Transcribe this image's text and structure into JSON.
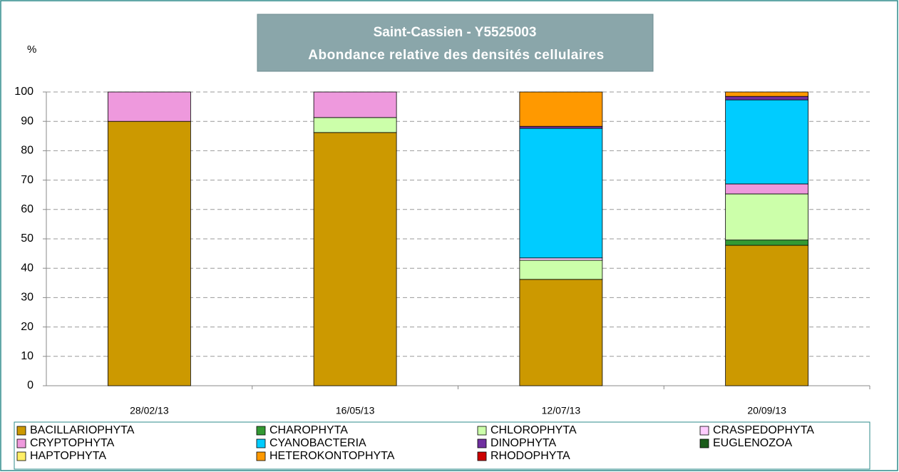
{
  "chart_data": {
    "type": "stacked_bar",
    "title": "Saint-Cassien - Y5525003",
    "subtitle": "Abondance relative des densités cellulaires",
    "y_label": "%",
    "categories": [
      "28/02/13",
      "16/05/13",
      "12/07/13",
      "20/09/13"
    ],
    "series": [
      {
        "name": "BACILLARIOPHYTA",
        "color": "#cc9900",
        "values": [
          90,
          86.2,
          36.2,
          47.8
        ]
      },
      {
        "name": "CHAROPHYTA",
        "color": "#339933",
        "values": [
          0,
          0,
          0,
          1.8
        ]
      },
      {
        "name": "CHLOROPHYTA",
        "color": "#ccffaa",
        "values": [
          0,
          5.1,
          6.5,
          15.7
        ]
      },
      {
        "name": "CRASPEDOPHYTA",
        "color": "#ffccff",
        "values": [
          0,
          0,
          0.8,
          0
        ]
      },
      {
        "name": "CRYPTOPHYTA",
        "color": "#ee99dd",
        "values": [
          10,
          8.7,
          0,
          3.4
        ]
      },
      {
        "name": "CYANOBACTERIA",
        "color": "#00ccff",
        "values": [
          0,
          0,
          44.1,
          28.6
        ]
      },
      {
        "name": "DINOPHYTA",
        "color": "#7030a0",
        "values": [
          0,
          0,
          0.7,
          1.2
        ]
      },
      {
        "name": "EUGLENOZOA",
        "color": "#1a5c1a",
        "values": [
          0,
          0,
          0,
          0
        ]
      },
      {
        "name": "HAPTOPHYTA",
        "color": "#ffee66",
        "values": [
          0,
          0,
          0,
          0
        ]
      },
      {
        "name": "HETEROKONTOPHYTA",
        "color": "#ff9900",
        "values": [
          0,
          0,
          11.7,
          1.5
        ]
      },
      {
        "name": "RHODOPHYTA",
        "color": "#cc0000",
        "values": [
          0,
          0,
          0,
          0
        ]
      }
    ],
    "ylim": [
      0,
      100
    ],
    "yticks": [
      0,
      10,
      20,
      30,
      40,
      50,
      60,
      70,
      80,
      90,
      100
    ],
    "grid": true
  }
}
